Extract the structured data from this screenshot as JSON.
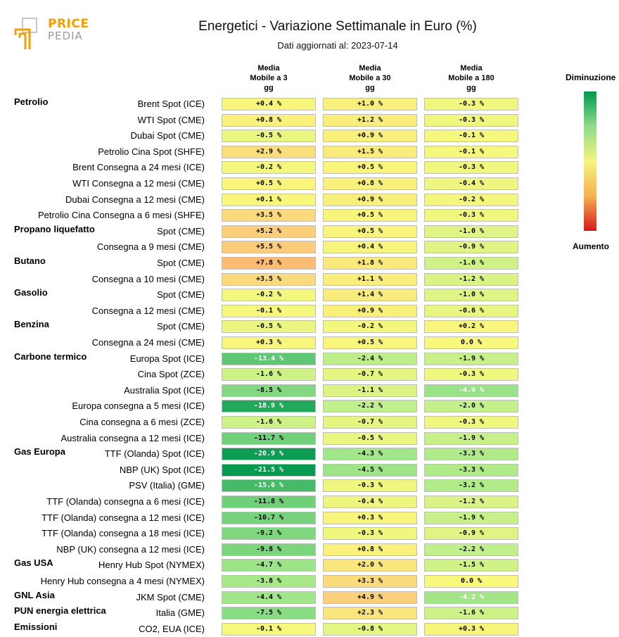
{
  "title": "Energetici - Variazione Settimanale in Euro (%)",
  "subtitle": "Dati aggiornati al: 2023-07-14",
  "logo": {
    "word1": "PRICE",
    "word2": "PEDIA"
  },
  "legend": {
    "top": "Diminuzione",
    "bottom": "Aumento"
  },
  "chart_data": {
    "type": "heatmap",
    "title": "Energetici - Variazione Settimanale in Euro (%)",
    "columns": [
      {
        "line1": "Media",
        "line2": "Mobile a 3",
        "line3": "gg"
      },
      {
        "line1": "Media",
        "line2": "Mobile a 30",
        "line3": "gg"
      },
      {
        "line1": "Media",
        "line2": "Mobile a 180",
        "line3": "gg"
      }
    ],
    "rows": [
      {
        "group": "Petrolio",
        "label": "Brent Spot (ICE)",
        "values": [
          0.4,
          1.0,
          -0.3
        ],
        "text": [
          "+0.4 %",
          "+1.0 %",
          "-0.3 %"
        ]
      },
      {
        "group": "",
        "label": "WTI Spot (CME)",
        "values": [
          0.8,
          1.2,
          -0.3
        ],
        "text": [
          "+0.8 %",
          "+1.2 %",
          "-0.3 %"
        ]
      },
      {
        "group": "",
        "label": "Dubai Spot (CME)",
        "values": [
          -0.5,
          0.9,
          -0.1
        ],
        "text": [
          "-0.5 %",
          "+0.9 %",
          "-0.1 %"
        ]
      },
      {
        "group": "",
        "label": "Petrolio Cina Spot (SHFE)",
        "values": [
          2.9,
          1.5,
          -0.1
        ],
        "text": [
          "+2.9 %",
          "+1.5 %",
          "-0.1 %"
        ]
      },
      {
        "group": "",
        "label": "Brent Consegna a 24 mesi (ICE)",
        "values": [
          -0.2,
          0.5,
          -0.3
        ],
        "text": [
          "-0.2 %",
          "+0.5 %",
          "-0.3 %"
        ]
      },
      {
        "group": "",
        "label": "WTI Consegna a 12 mesi (CME)",
        "values": [
          0.5,
          0.8,
          -0.4
        ],
        "text": [
          "+0.5 %",
          "+0.8 %",
          "-0.4 %"
        ]
      },
      {
        "group": "",
        "label": "Dubai Consegna a 12 mesi (CME)",
        "values": [
          0.1,
          0.9,
          -0.2
        ],
        "text": [
          "+0.1 %",
          "+0.9 %",
          "-0.2 %"
        ]
      },
      {
        "group": "",
        "label": "Petrolio Cina Consegna a 6 mesi (SHFE)",
        "values": [
          3.5,
          0.5,
          -0.3
        ],
        "text": [
          "+3.5 %",
          "+0.5 %",
          "-0.3 %"
        ]
      },
      {
        "group": "Propano liquefatto",
        "label": "Spot (CME)",
        "values": [
          5.2,
          0.5,
          -1.0
        ],
        "text": [
          "+5.2 %",
          "+0.5 %",
          "-1.0 %"
        ]
      },
      {
        "group": "",
        "label": "Consegna a 9 mesi (CME)",
        "values": [
          5.5,
          0.4,
          -0.9
        ],
        "text": [
          "+5.5 %",
          "+0.4 %",
          "-0.9 %"
        ]
      },
      {
        "group": "Butano",
        "label": "Spot (CME)",
        "values": [
          7.8,
          1.8,
          -1.6
        ],
        "text": [
          "+7.8 %",
          "+1.8 %",
          "-1.6 %"
        ]
      },
      {
        "group": "",
        "label": "Consegna a 10 mesi (CME)",
        "values": [
          3.5,
          1.1,
          -1.2
        ],
        "text": [
          "+3.5 %",
          "+1.1 %",
          "-1.2 %"
        ]
      },
      {
        "group": "Gasolio",
        "label": "Spot (CME)",
        "values": [
          -0.2,
          1.4,
          -1.0
        ],
        "text": [
          "-0.2 %",
          "+1.4 %",
          "-1.0 %"
        ]
      },
      {
        "group": "",
        "label": "Consegna a 12 mesi (CME)",
        "values": [
          -0.1,
          0.9,
          -0.6
        ],
        "text": [
          "-0.1 %",
          "+0.9 %",
          "-0.6 %"
        ]
      },
      {
        "group": "Benzina",
        "label": "Spot (CME)",
        "values": [
          -0.5,
          -0.2,
          0.2
        ],
        "text": [
          "-0.5 %",
          "-0.2 %",
          "+0.2 %"
        ]
      },
      {
        "group": "",
        "label": "Consegna a 24 mesi (CME)",
        "values": [
          0.3,
          0.5,
          0.0
        ],
        "text": [
          "+0.3 %",
          "+0.5 %",
          "0.0 %"
        ]
      },
      {
        "group": "Carbone termico",
        "label": "Europa Spot (ICE)",
        "values": [
          -13.4,
          -2.4,
          -1.9
        ],
        "text": [
          "-13.4 %",
          "-2.4 %",
          "-1.9 %"
        ]
      },
      {
        "group": "",
        "label": "Cina Spot (ZCE)",
        "values": [
          -1.6,
          -0.7,
          -0.3
        ],
        "text": [
          "-1.6 %",
          "-0.7 %",
          "-0.3 %"
        ]
      },
      {
        "group": "",
        "label": "Australia Spot (ICE)",
        "values": [
          -8.5,
          -1.1,
          -4.9
        ],
        "text": [
          "-8.5 %",
          "-1.1 %",
          "-4.9 %"
        ]
      },
      {
        "group": "",
        "label": "Europa consegna a 5 mesi (ICE)",
        "values": [
          -18.9,
          -2.2,
          -2.0
        ],
        "text": [
          "-18.9 %",
          "-2.2 %",
          "-2.0 %"
        ]
      },
      {
        "group": "",
        "label": "Cina consegna a 6 mesi (ZCE)",
        "values": [
          -1.6,
          -0.7,
          -0.3
        ],
        "text": [
          "-1.6 %",
          "-0.7 %",
          "-0.3 %"
        ]
      },
      {
        "group": "",
        "label": "Australia consegna a 12 mesi (ICE)",
        "values": [
          -11.7,
          -0.5,
          -1.9
        ],
        "text": [
          "-11.7 %",
          "-0.5 %",
          "-1.9 %"
        ]
      },
      {
        "group": "Gas Europa",
        "label": "TTF (Olanda) Spot (ICE)",
        "values": [
          -20.9,
          -4.3,
          -3.3
        ],
        "text": [
          "-20.9 %",
          "-4.3 %",
          "-3.3 %"
        ]
      },
      {
        "group": "",
        "label": "NBP (UK) Spot (ICE)",
        "values": [
          -21.5,
          -4.5,
          -3.3
        ],
        "text": [
          "-21.5 %",
          "-4.5 %",
          "-3.3 %"
        ]
      },
      {
        "group": "",
        "label": "PSV (Italia) (GME)",
        "values": [
          -15.6,
          -0.3,
          -3.2
        ],
        "text": [
          "-15.6 %",
          "-0.3 %",
          "-3.2 %"
        ]
      },
      {
        "group": "",
        "label": "TTF (Olanda) consegna a 6 mesi (ICE)",
        "values": [
          -11.8,
          -0.4,
          -1.2
        ],
        "text": [
          "-11.8 %",
          "-0.4 %",
          "-1.2 %"
        ]
      },
      {
        "group": "",
        "label": "TTF (Olanda) consegna a 12 mesi (ICE)",
        "values": [
          -10.7,
          0.3,
          -1.9
        ],
        "text": [
          "-10.7 %",
          "+0.3 %",
          "-1.9 %"
        ]
      },
      {
        "group": "",
        "label": "TTF (Olanda) consegna a 18 mesi (ICE)",
        "values": [
          -9.2,
          -0.3,
          -0.9
        ],
        "text": [
          "-9.2 %",
          "-0.3 %",
          "-0.9 %"
        ]
      },
      {
        "group": "",
        "label": "NBP (UK) consegna a 12 mesi (ICE)",
        "values": [
          -9.8,
          0.8,
          -2.2
        ],
        "text": [
          "-9.8 %",
          "+0.8 %",
          "-2.2 %"
        ]
      },
      {
        "group": "Gas USA",
        "label": "Henry Hub Spot (NYMEX)",
        "values": [
          -4.7,
          2.0,
          -1.5
        ],
        "text": [
          "-4.7 %",
          "+2.0 %",
          "-1.5 %"
        ]
      },
      {
        "group": "",
        "label": "Henry Hub consegna a 4 mesi (NYMEX)",
        "values": [
          -3.8,
          3.3,
          0.0
        ],
        "text": [
          "-3.8 %",
          "+3.3 %",
          "0.0 %"
        ]
      },
      {
        "group": "GNL Asia",
        "label": "JKM Spot (CME)",
        "values": [
          -4.4,
          4.9,
          -4.2
        ],
        "text": [
          "-4.4 %",
          "+4.9 %",
          "-4.2 %"
        ]
      },
      {
        "group": "PUN energia elettrica",
        "label": "Italia (GME)",
        "values": [
          -7.5,
          2.3,
          -1.6
        ],
        "text": [
          "-7.5 %",
          "+2.3 %",
          "-1.6 %"
        ]
      },
      {
        "group": "Emissioni",
        "label": "CO2, EUA (ICE)",
        "values": [
          -0.1,
          -0.8,
          0.3
        ],
        "text": [
          "-0.1 %",
          "-0.8 %",
          "+0.3 %"
        ]
      }
    ]
  }
}
